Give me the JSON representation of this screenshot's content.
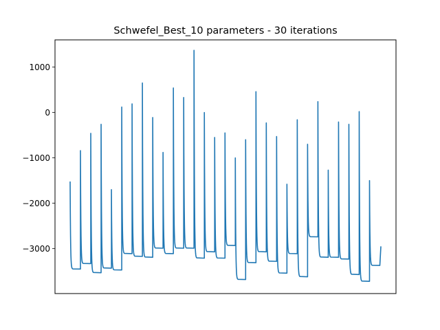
{
  "chart_data": {
    "type": "line",
    "title": "Schwefel_Best_10 parameters - 30 iterations",
    "xlabel": "",
    "ylabel": "",
    "x_axis_ticks_visible": false,
    "ylim": [
      -3990,
      1600
    ],
    "yticks": [
      1000,
      0,
      -1000,
      -2000,
      -3000
    ],
    "ytick_labels": [
      "1000",
      "0",
      "−1000",
      "−2000",
      "−3000"
    ],
    "grid": false,
    "color": "#1f77b4",
    "series": [
      {
        "runs": [
          {
            "peak": -1520,
            "floor": -3450
          },
          {
            "peak": -840,
            "floor": -3330
          },
          {
            "peak": -460,
            "floor": -3530
          },
          {
            "peak": -260,
            "floor": -3430
          },
          {
            "peak": -1700,
            "floor": -3470
          },
          {
            "peak": 120,
            "floor": -3110
          },
          {
            "peak": 190,
            "floor": -3170
          },
          {
            "peak": 650,
            "floor": -3190
          },
          {
            "peak": -110,
            "floor": -2990
          },
          {
            "peak": -880,
            "floor": -3110
          },
          {
            "peak": 540,
            "floor": -2990
          },
          {
            "peak": 330,
            "floor": -2990
          },
          {
            "peak": 1370,
            "floor": -3210
          },
          {
            "peak": 0,
            "floor": -3070
          },
          {
            "peak": -550,
            "floor": -3210
          },
          {
            "peak": -450,
            "floor": -2930
          },
          {
            "peak": -1000,
            "floor": -3680
          },
          {
            "peak": -600,
            "floor": -3310
          },
          {
            "peak": 460,
            "floor": -3070
          },
          {
            "peak": -230,
            "floor": -3280
          },
          {
            "peak": -530,
            "floor": -3540
          },
          {
            "peak": -1580,
            "floor": -3110
          },
          {
            "peak": -160,
            "floor": -3620
          },
          {
            "peak": -700,
            "floor": -2740
          },
          {
            "peak": 240,
            "floor": -3190
          },
          {
            "peak": -1270,
            "floor": -3190
          },
          {
            "peak": -210,
            "floor": -3230
          },
          {
            "peak": -260,
            "floor": -3570
          },
          {
            "peak": 20,
            "floor": -3720
          },
          {
            "peak": -1500,
            "floor": -3370
          }
        ],
        "final_value": -2950
      }
    ]
  }
}
